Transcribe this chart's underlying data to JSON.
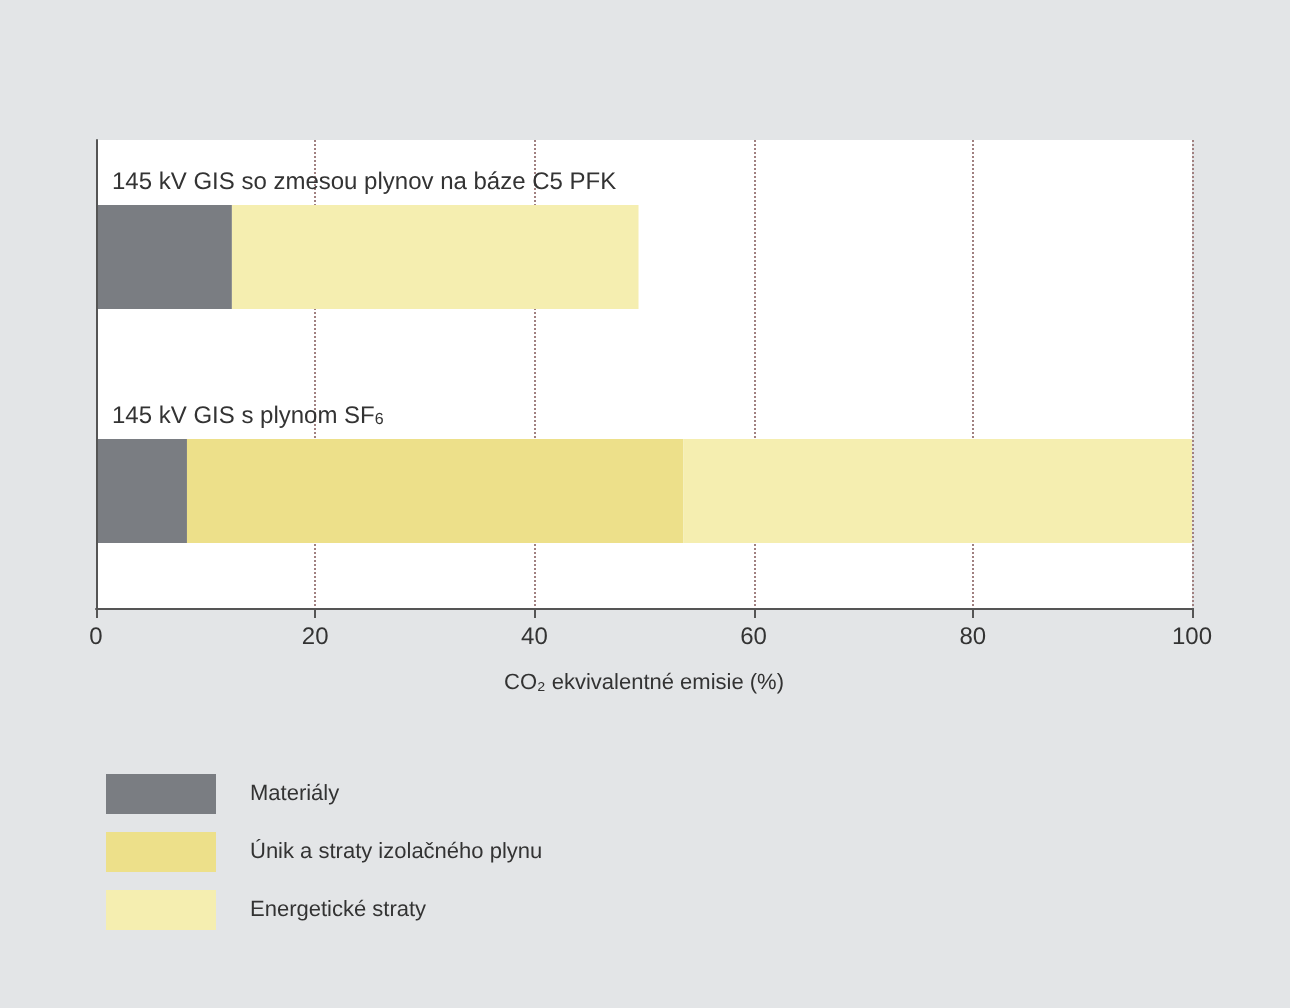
{
  "chart_data": {
    "type": "bar",
    "orientation": "horizontal",
    "stacked": true,
    "categories": [
      "145 kV GIS so zmesou plynov na báze C5 PFK",
      "145 kV GIS s plynom SF$_{6}$"
    ],
    "series": [
      {
        "name": "Materiály",
        "color": "#7a7d82",
        "values": [
          12.4,
          8.3
        ]
      },
      {
        "name": "Únik a straty izolačného plynu",
        "color": "#ede08a",
        "values": [
          0,
          45.3
        ]
      },
      {
        "name": "Energetické straty",
        "color": "#f5eeb0",
        "values": [
          37.1,
          46.4
        ]
      }
    ],
    "xlim": [
      0,
      100
    ],
    "xticks": [
      0,
      20,
      40,
      60,
      80,
      100
    ],
    "xlabel": "CO₂ ekvivalentné emisie (%)",
    "grid": "x",
    "legend": "bottom left"
  }
}
